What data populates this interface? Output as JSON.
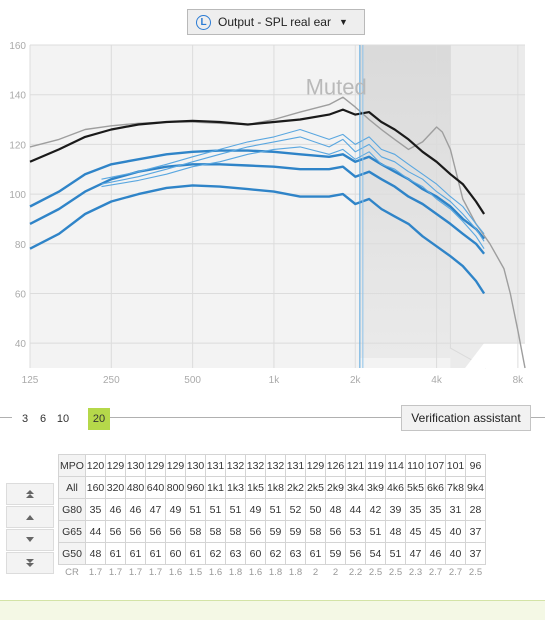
{
  "dropdown": {
    "badge": "L",
    "label": "Output - SPL real ear",
    "caret": "▼"
  },
  "chart_data": {
    "type": "line",
    "x_ticks": [
      "125",
      "250",
      "500",
      "1k",
      "2k",
      "4k",
      "8k"
    ],
    "y_ticks": [
      40,
      60,
      80,
      100,
      120,
      140,
      160
    ],
    "ylim": [
      30,
      160
    ],
    "overlay_text": "Muted",
    "series": [
      {
        "name": "",
        "color": "#9e9e9e",
        "x": [
          125,
          160,
          200,
          250,
          315,
          400,
          500,
          630,
          800,
          1000,
          1250,
          1600,
          1800,
          2000,
          2250,
          2500,
          2800,
          3150,
          3550,
          4000,
          4200,
          4500,
          5000,
          5600,
          6300,
          7100,
          7500,
          8000,
          8500
        ],
        "y": [
          119,
          122,
          126,
          127.5,
          128.5,
          129,
          129,
          128.5,
          128,
          130,
          133,
          136,
          139,
          135,
          130,
          126,
          122,
          118,
          121,
          127,
          125,
          118,
          98,
          88,
          80,
          70,
          60,
          45,
          30
        ]
      },
      {
        "name": "",
        "color": "#1a1a1a",
        "x": [
          125,
          160,
          200,
          250,
          315,
          400,
          500,
          630,
          800,
          1000,
          1250,
          1600,
          1800,
          2000,
          2250,
          2500,
          2800,
          3150,
          3550,
          4000,
          4500,
          5000,
          5600,
          6000
        ],
        "y": [
          113,
          118,
          123,
          126,
          128,
          129,
          129.5,
          129,
          128,
          129,
          130,
          132,
          134,
          132,
          133,
          129,
          126,
          122,
          117,
          113,
          108,
          104,
          97,
          92
        ]
      },
      {
        "name": "",
        "color": "#2f84c8",
        "x": [
          125,
          160,
          200,
          250,
          315,
          400,
          500,
          630,
          800,
          1000,
          1250,
          1600,
          1800,
          2000,
          2250,
          2500,
          2800,
          3150,
          3550,
          4000,
          4500,
          5000,
          5600,
          6000
        ],
        "y": [
          95,
          101,
          108,
          112,
          114,
          116,
          117,
          117.5,
          117.5,
          117,
          116,
          115,
          116,
          113,
          115,
          112,
          109,
          106,
          102,
          99,
          95,
          90,
          86,
          82
        ]
      },
      {
        "name": "",
        "color": "#2f84c8",
        "x": [
          125,
          160,
          200,
          250,
          315,
          400,
          500,
          630,
          800,
          1000,
          1250,
          1600,
          1800,
          2000,
          2250,
          2500,
          2800,
          3150,
          3550,
          4000,
          4500,
          5000,
          5600,
          6000
        ],
        "y": [
          88,
          94,
          101,
          106,
          109,
          111,
          112,
          112,
          111.5,
          111,
          110,
          110,
          111,
          107,
          109,
          106,
          103,
          99,
          96,
          92,
          88,
          84,
          80,
          76
        ]
      },
      {
        "name": "",
        "color": "#2f84c8",
        "x": [
          125,
          160,
          200,
          250,
          315,
          400,
          500,
          630,
          800,
          1000,
          1250,
          1600,
          1800,
          2000,
          2250,
          2500,
          2800,
          3150,
          3550,
          4000,
          4500,
          5000,
          5600,
          6000
        ],
        "y": [
          78,
          84,
          92,
          97,
          100,
          102.5,
          103.5,
          103,
          102,
          101,
          99,
          99,
          100,
          96,
          98,
          94,
          91,
          88,
          83,
          79,
          75,
          71,
          65,
          60
        ]
      },
      {
        "name": "",
        "color": "#5aa7e0",
        "x": [
          230,
          315,
          400,
          500,
          630,
          800,
          1000,
          1250,
          1600,
          1800,
          2000,
          2250,
          2500,
          2800,
          3150,
          3550,
          4000,
          4500,
          5000,
          5600,
          6000
        ],
        "y": [
          106,
          109,
          112,
          115,
          118,
          121,
          123,
          126,
          122,
          124,
          120,
          123,
          118,
          116,
          112,
          108,
          104,
          99,
          95,
          88,
          84
        ]
      },
      {
        "name": "",
        "color": "#5aa7e0",
        "x": [
          230,
          315,
          400,
          500,
          630,
          800,
          1000,
          1250,
          1600,
          1800,
          2000,
          2250,
          2500,
          2800,
          3150,
          3550,
          4000,
          4500,
          5000,
          5600,
          6000
        ],
        "y": [
          104,
          107,
          110,
          113,
          116,
          119,
          121,
          123,
          119,
          122,
          117,
          120,
          115,
          113,
          109,
          106,
          101,
          97,
          92,
          86,
          81
        ]
      },
      {
        "name": "",
        "color": "#5aa7e0",
        "x": [
          230,
          315,
          400,
          500,
          630,
          800,
          1000,
          1250,
          1600,
          1800,
          2000,
          2250,
          2500,
          2800,
          3150,
          3550,
          4000,
          4500,
          5000,
          5600,
          6000
        ],
        "y": [
          103,
          105.5,
          108,
          111,
          113,
          116,
          118,
          119,
          116,
          118,
          114,
          117,
          112,
          110,
          106,
          103,
          98,
          94,
          89,
          83,
          78
        ]
      }
    ],
    "cursor_x": 2080
  },
  "compression_rates": [
    "3",
    "6",
    "10",
    "20"
  ],
  "selected_rate": "20",
  "verify_button": "Verification assistant",
  "table": {
    "rows": [
      {
        "label": "MPO",
        "values": [
          "120",
          "129",
          "130",
          "129",
          "129",
          "130",
          "131",
          "132",
          "132",
          "132",
          "131",
          "129",
          "126",
          "121",
          "119",
          "114",
          "110",
          "107",
          "101",
          "96"
        ]
      },
      {
        "label": "All",
        "values": [
          "160",
          "320",
          "480",
          "640",
          "800",
          "960",
          "1k1",
          "1k3",
          "1k5",
          "1k8",
          "2k2",
          "2k5",
          "2k9",
          "3k4",
          "3k9",
          "4k6",
          "5k5",
          "6k6",
          "7k8",
          "9k4"
        ]
      },
      {
        "label": "G80",
        "values": [
          "35",
          "46",
          "46",
          "47",
          "49",
          "51",
          "51",
          "51",
          "49",
          "51",
          "52",
          "50",
          "48",
          "44",
          "42",
          "39",
          "35",
          "35",
          "31",
          "28"
        ]
      },
      {
        "label": "G65",
        "values": [
          "44",
          "56",
          "56",
          "56",
          "56",
          "58",
          "58",
          "58",
          "56",
          "59",
          "59",
          "58",
          "56",
          "53",
          "51",
          "48",
          "45",
          "45",
          "40",
          "37"
        ]
      },
      {
        "label": "G50",
        "values": [
          "48",
          "61",
          "61",
          "61",
          "60",
          "61",
          "62",
          "63",
          "60",
          "62",
          "63",
          "61",
          "59",
          "56",
          "54",
          "51",
          "47",
          "46",
          "40",
          "37"
        ]
      },
      {
        "label": "CR",
        "values": [
          "1.7",
          "1.7",
          "1.7",
          "1.7",
          "1.6",
          "1.5",
          "1.6",
          "1.8",
          "1.6",
          "1.8",
          "1.8",
          "2",
          "2",
          "2.2",
          "2.5",
          "2.5",
          "2.3",
          "2.7",
          "2.7",
          "2.5"
        ]
      }
    ]
  },
  "arrow_icons": [
    "double-up-arrow-icon",
    "up-arrow-icon",
    "down-arrow-icon",
    "double-down-arrow-icon"
  ]
}
